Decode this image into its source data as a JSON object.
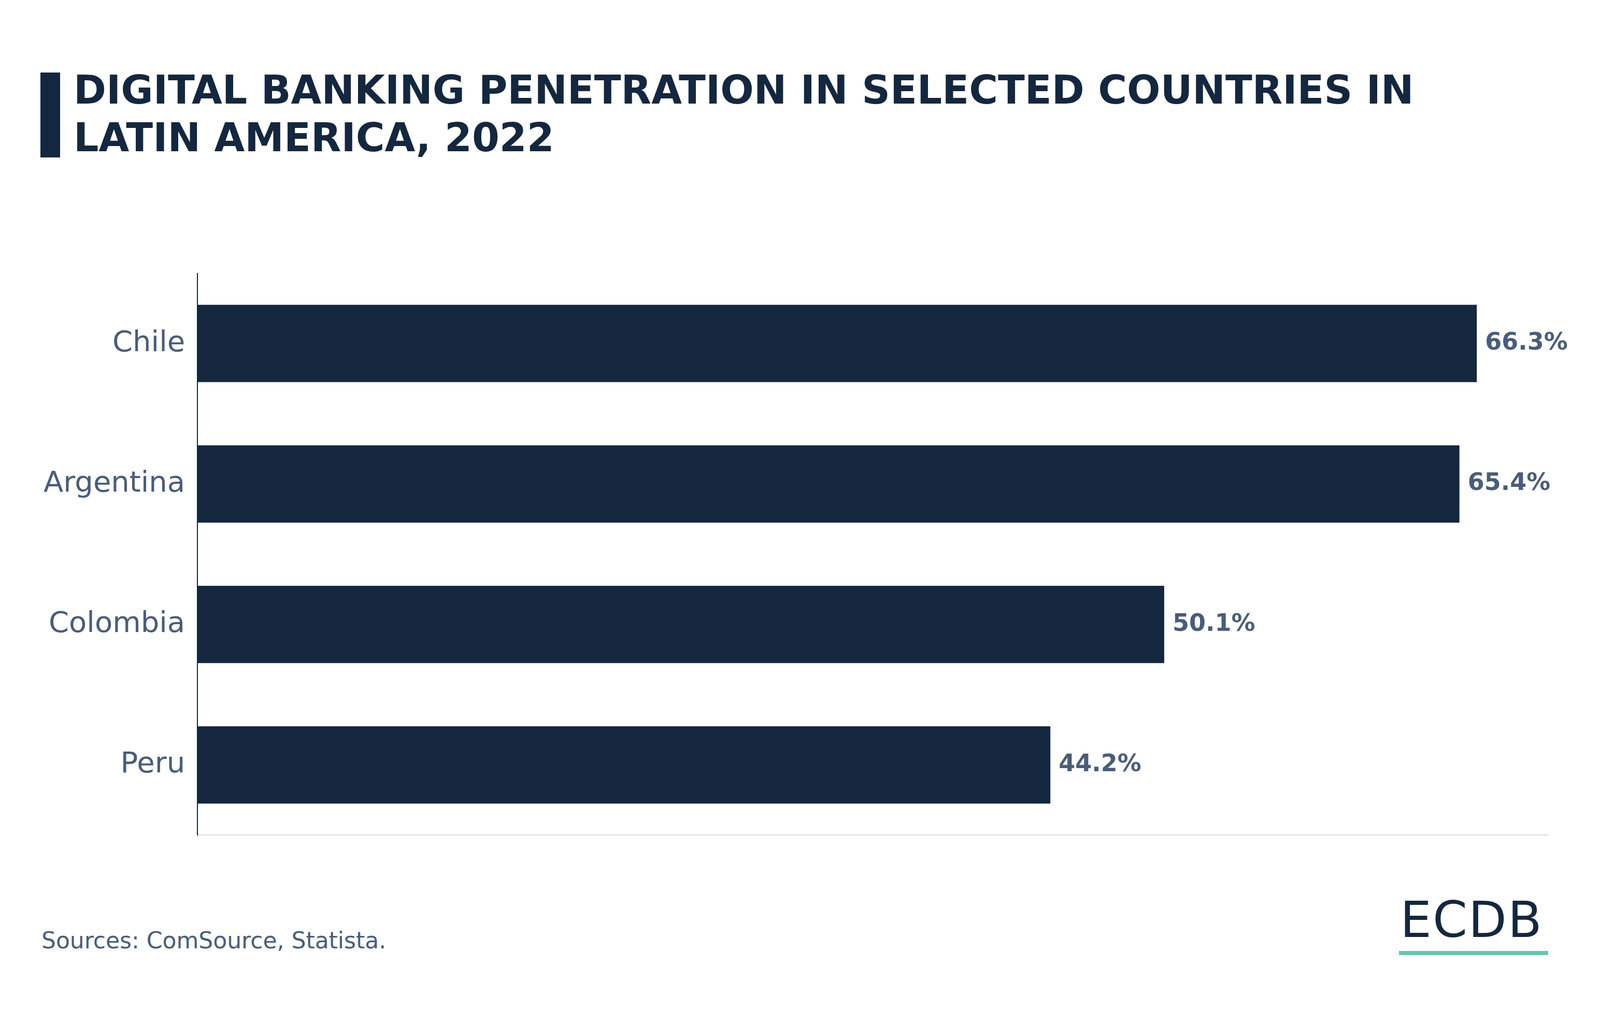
{
  "chart_data": {
    "type": "bar",
    "orientation": "horizontal",
    "title": "DIGITAL BANKING PENETRATION IN SELECTED COUNTRIES IN LATIN AMERICA, 2022",
    "categories": [
      "Chile",
      "Argentina",
      "Colombia",
      "Peru"
    ],
    "values": [
      66.3,
      65.4,
      50.1,
      44.2
    ],
    "value_labels": [
      "66.3%",
      "65.4%",
      "50.1%",
      "44.2%"
    ],
    "color": "#14273f",
    "xlim": [
      0,
      70
    ],
    "grid": false,
    "data_labels": true,
    "tick_labels": "y",
    "source": "Sources: ComSource, Statista.",
    "brand": "ECDB"
  }
}
